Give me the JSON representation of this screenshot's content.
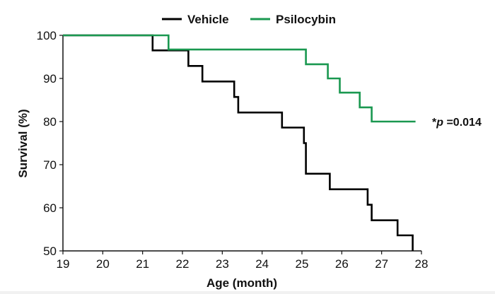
{
  "chart_data": {
    "type": "line",
    "subtype": "step",
    "title": "",
    "xlabel": "Age (month)",
    "ylabel": "Survival (%)",
    "xlim": [
      19,
      28
    ],
    "ylim": [
      50,
      100
    ],
    "xticks": [
      19,
      20,
      21,
      22,
      23,
      24,
      25,
      26,
      27,
      28
    ],
    "yticks": [
      50,
      60,
      70,
      80,
      90,
      100
    ],
    "grid": false,
    "legend_position": "top-center",
    "annotation": {
      "prefix": "*",
      "italic": "p",
      "suffix": " =0.014"
    },
    "series": [
      {
        "name": "Vehicle",
        "color": "#000000",
        "x": [
          19,
          21.25,
          22.15,
          22.5,
          23.3,
          23.4,
          24.5,
          25.05,
          25.1,
          25.7,
          26.65,
          26.75,
          27.4,
          27.78,
          27.78
        ],
        "y": [
          100,
          96.5,
          92.9,
          89.3,
          85.7,
          82.1,
          78.6,
          75.0,
          67.9,
          64.3,
          60.7,
          57.1,
          53.6,
          50.0,
          50.0
        ]
      },
      {
        "name": "Psilocybin",
        "color": "#1a9850",
        "x": [
          19,
          21.65,
          25.1,
          25.65,
          25.95,
          26.45,
          26.75,
          27.85
        ],
        "y": [
          100,
          96.7,
          93.3,
          90.0,
          86.7,
          83.3,
          80.0,
          80.0
        ]
      }
    ]
  }
}
